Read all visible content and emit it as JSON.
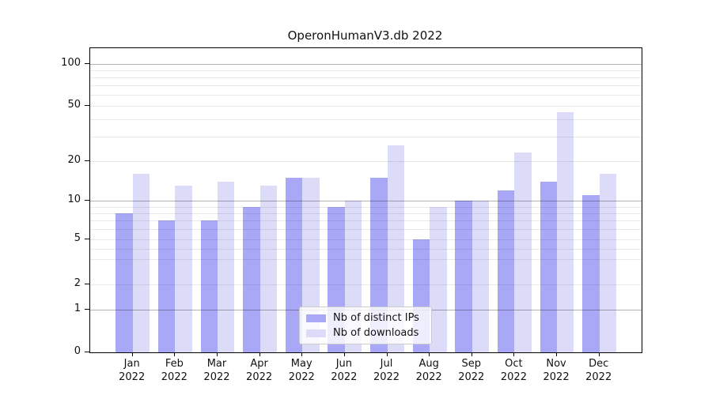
{
  "chart_data": {
    "type": "bar",
    "title": "OperonHumanV3.db 2022",
    "categories": [
      "Jan",
      "Feb",
      "Mar",
      "Apr",
      "May",
      "Jun",
      "Jul",
      "Aug",
      "Sep",
      "Oct",
      "Nov",
      "Dec"
    ],
    "category_year": "2022",
    "series": [
      {
        "name": "Nb of distinct IPs",
        "color": "#a8a8f6",
        "values": [
          8,
          7,
          7,
          9,
          15,
          9,
          15,
          5,
          10,
          12,
          14,
          11
        ]
      },
      {
        "name": "Nb of downloads",
        "color": "#dcdcf9",
        "values": [
          16,
          13,
          14,
          13,
          15,
          10,
          26,
          9,
          10,
          23,
          45,
          16
        ]
      }
    ],
    "xlabel": "",
    "ylabel": "",
    "yscale": "symlog-like (log above ~5, compressed linear toward 0)",
    "ylim": [
      0,
      130
    ],
    "yticks": [
      0,
      1,
      2,
      5,
      10,
      20,
      50,
      100
    ],
    "major_grid_values": [
      1,
      10,
      100
    ],
    "minor_grid_values": [
      2,
      3,
      4,
      5,
      6,
      7,
      8,
      9,
      20,
      30,
      40,
      50,
      60,
      70,
      80,
      90
    ],
    "grid": true,
    "legend_position": "lower center"
  }
}
